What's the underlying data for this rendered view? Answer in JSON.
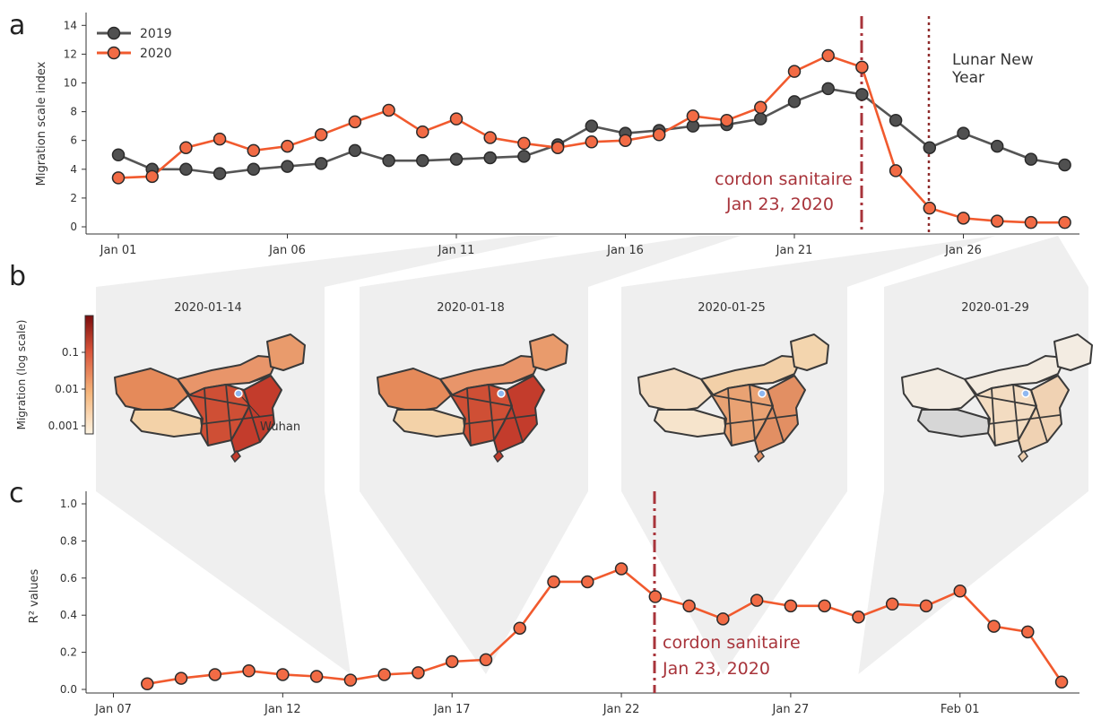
{
  "panels": {
    "a": "a",
    "b": "b",
    "c": "c"
  },
  "colors": {
    "y2019": "#555555",
    "y2020": "#f15a2e",
    "marker_2019": "#505050",
    "marker_2020": "#f26b45",
    "cordon": "#a8343b",
    "lny": "#8e2b2b",
    "wedge": "#efefef"
  },
  "chart_data": [
    {
      "type": "line",
      "panel": "a",
      "ylabel": "Migration scale index",
      "ylim": [
        0,
        14.5
      ],
      "yticks": [
        0,
        2,
        4,
        6,
        8,
        10,
        12,
        14
      ],
      "x_tick_labels": [
        {
          "day": 1,
          "label": "Jan 01"
        },
        {
          "day": 6,
          "label": "Jan 06"
        },
        {
          "day": 11,
          "label": "Jan 11"
        },
        {
          "day": 16,
          "label": "Jan 16"
        },
        {
          "day": 21,
          "label": "Jan 21"
        },
        {
          "day": 26,
          "label": "Jan 26"
        }
      ],
      "x_days": [
        1,
        2,
        3,
        4,
        5,
        6,
        7,
        8,
        9,
        10,
        11,
        12,
        13,
        14,
        15,
        16,
        17,
        18,
        19,
        20,
        21,
        22,
        23,
        24,
        25,
        26,
        27,
        28,
        29
      ],
      "series": [
        {
          "name": "2019",
          "values": [
            5.0,
            4.0,
            4.0,
            3.7,
            4.0,
            4.2,
            4.4,
            5.3,
            4.6,
            4.6,
            4.7,
            4.8,
            4.9,
            5.7,
            7.0,
            6.5,
            6.7,
            7.0,
            7.1,
            7.5,
            8.7,
            9.6,
            9.2,
            7.4,
            5.5,
            6.5,
            5.6,
            4.7,
            4.3
          ]
        },
        {
          "name": "2020",
          "values": [
            3.4,
            3.5,
            5.5,
            6.1,
            5.3,
            5.6,
            6.4,
            7.3,
            8.1,
            6.6,
            7.5,
            6.2,
            5.8,
            5.5,
            5.9,
            6.0,
            6.4,
            7.7,
            7.4,
            8.3,
            10.8,
            11.9,
            11.1,
            3.9,
            1.3,
            0.6,
            0.4,
            0.3,
            0.3
          ]
        }
      ],
      "legend": "top-left",
      "annotations": {
        "cordon_line1": "cordon sanitaire",
        "cordon_line2": "Jan 23, 2020",
        "lny_line1": "Lunar New",
        "lny_line2": "Year"
      }
    },
    {
      "type": "line",
      "panel": "c",
      "ylabel": "R² values",
      "ylim": [
        0,
        1.0
      ],
      "yticks": [
        "0.0",
        "0.2",
        "0.4",
        "0.6",
        "0.8",
        "1.0"
      ],
      "x_tick_labels": [
        {
          "day": 7,
          "label": "Jan 07"
        },
        {
          "day": 12,
          "label": "Jan 12"
        },
        {
          "day": 17,
          "label": "Jan 17"
        },
        {
          "day": 22,
          "label": "Jan 22"
        },
        {
          "day": 27,
          "label": "Jan 27"
        },
        {
          "day": 32,
          "label": "Feb 01"
        }
      ],
      "x_days": [
        8,
        9,
        10,
        11,
        12,
        13,
        14,
        15,
        16,
        17,
        18,
        19,
        20,
        21,
        22,
        23,
        24,
        25,
        26,
        27,
        28,
        29,
        30,
        31,
        32,
        33,
        34,
        35
      ],
      "series": [
        {
          "values": [
            0.03,
            0.06,
            0.08,
            0.1,
            0.08,
            0.07,
            0.05,
            0.08,
            0.09,
            0.15,
            0.16,
            0.33,
            0.58,
            0.58,
            0.65,
            0.5,
            0.45,
            0.38,
            0.48,
            0.45,
            0.45,
            0.39,
            0.46,
            0.45,
            0.53,
            0.34,
            0.31,
            0.04
          ]
        }
      ],
      "annotations": {
        "cordon_line1": "cordon sanitaire",
        "cordon_line2": "Jan 23, 2020"
      }
    }
  ],
  "maps": {
    "colorbar_label": "Migration (log scale)",
    "colorbar_ticks": [
      "0.1",
      "0.01",
      "0.001"
    ],
    "city_label": "Wuhan",
    "items": [
      {
        "date": "2020-01-14",
        "west": "#e58a5a",
        "tibet": "#f3d2a8",
        "north": "#e8956a",
        "northeast": "#e99b6c",
        "core": "#cf4f35",
        "east": "#c33c2c"
      },
      {
        "date": "2020-01-18",
        "west": "#e58a5a",
        "tibet": "#f3d2a8",
        "north": "#e8956a",
        "northeast": "#e99b6c",
        "core": "#cf4f35",
        "east": "#c33c2c"
      },
      {
        "date": "2020-01-25",
        "west": "#f4dcc0",
        "tibet": "#f6e4cc",
        "north": "#f2d0a8",
        "northeast": "#f3d5ae",
        "core": "#e9a273",
        "east": "#e28f63"
      },
      {
        "date": "2020-01-29",
        "west": "#f3ece2",
        "tibet": "#d6d6d6",
        "north": "#f3ebe0",
        "northeast": "#f3ece2",
        "core": "#f3dcc1",
        "east": "#f0d2b3"
      }
    ]
  }
}
